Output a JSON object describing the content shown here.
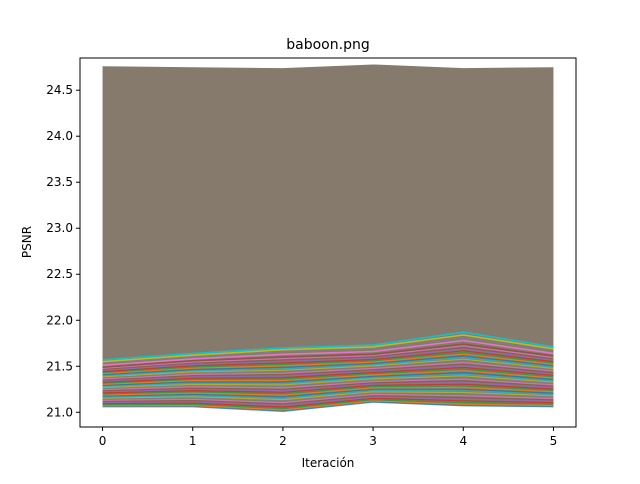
{
  "chart_data": {
    "type": "line",
    "title": "baboon.png",
    "xlabel": "Iteración",
    "ylabel": "PSNR",
    "xlim": [
      -0.25,
      5.25
    ],
    "ylim": [
      20.84,
      24.85
    ],
    "x": [
      0,
      1,
      2,
      3,
      4,
      5
    ],
    "xticks": [
      0,
      1,
      2,
      3,
      4,
      5
    ],
    "yticks": [
      21.0,
      21.5,
      22.0,
      22.5,
      23.0,
      23.5,
      24.0,
      24.5
    ],
    "grid": false,
    "legend": "none",
    "envelope": {
      "upper": [
        24.76,
        24.75,
        24.74,
        24.78,
        24.74,
        24.75
      ],
      "lower": [
        21.06,
        21.06,
        21.01,
        21.11,
        21.07,
        21.06
      ]
    },
    "fill_color": "#857a6b",
    "stripe_colors": [
      "#1f77b4",
      "#ff7f0e",
      "#2ca02c",
      "#d62728",
      "#9467bd",
      "#8c564b",
      "#e377c2",
      "#7f7f7f",
      "#bcbd22",
      "#17becf"
    ],
    "series": [
      {
        "values": [
          21.57,
          21.64,
          21.7,
          21.73,
          21.87,
          21.71
        ],
        "color": "#17becf"
      },
      {
        "values": [
          21.55,
          21.62,
          21.68,
          21.71,
          21.84,
          21.69
        ],
        "color": "#bcbd22"
      },
      {
        "values": [
          21.53,
          21.6,
          21.66,
          21.69,
          21.81,
          21.67
        ],
        "color": "#7f7f7f"
      },
      {
        "values": [
          21.51,
          21.58,
          21.63,
          21.66,
          21.78,
          21.64
        ],
        "color": "#e377c2"
      },
      {
        "values": [
          21.49,
          21.56,
          21.6,
          21.63,
          21.74,
          21.61
        ],
        "color": "#8c564b"
      }
    ]
  }
}
